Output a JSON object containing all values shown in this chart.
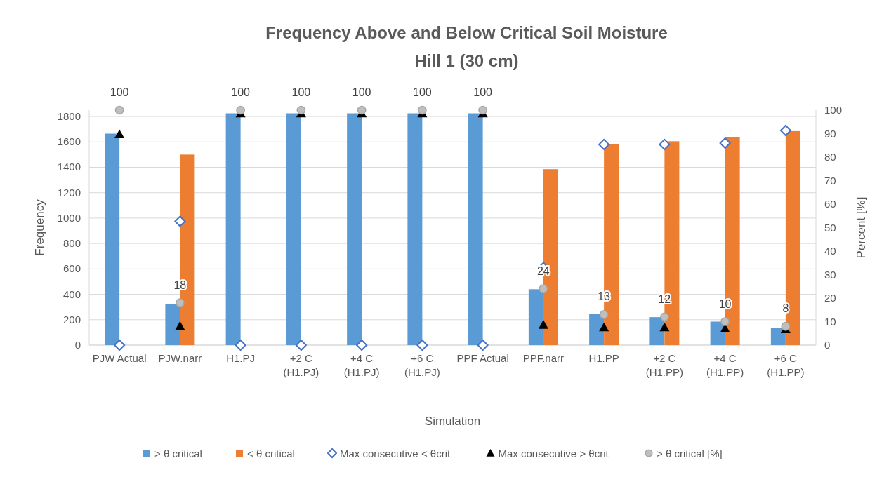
{
  "chart_data": {
    "type": "bar",
    "title": "Frequency Above and Below Critical Soil Moisture",
    "subtitle": "Hill 1 (30 cm)",
    "xlabel": "Simulation",
    "ylabel": "Frequency",
    "y2label": "Percent [%]",
    "categories": [
      "PJW Actual",
      "PJW.narr",
      "H1.PJ",
      "+2 C (H1.PJ)",
      "+4 C (H1.PJ)",
      "+6 C (H1.PJ)",
      "PPF Actual",
      "PPF.narr",
      "H1.PP",
      "+2 C (H1.PP)",
      "+4 C (H1.PP)",
      "+6 C (H1.PP)"
    ],
    "series": [
      {
        "name": "> θ critical",
        "color": "#5b9bd5",
        "values": [
          1665,
          325,
          1825,
          1825,
          1825,
          1825,
          1825,
          440,
          245,
          220,
          185,
          135
        ]
      },
      {
        "name": "< θ critical",
        "color": "#ed7d31",
        "values": [
          null,
          1500,
          null,
          null,
          null,
          null,
          null,
          1385,
          1580,
          1605,
          1640,
          1685
        ]
      },
      {
        "name": "Max consecutive < θcrit",
        "type": "scatter",
        "marker": "diamond",
        "color": "#4472c4",
        "values": [
          0,
          975,
          0,
          0,
          0,
          0,
          0,
          610,
          1580,
          1580,
          1590,
          1690
        ]
      },
      {
        "name": "Max consecutive > θcrit",
        "type": "scatter",
        "marker": "triangle",
        "color": "#000000",
        "values": [
          1660,
          150,
          1825,
          1825,
          1825,
          1825,
          1825,
          160,
          140,
          140,
          130,
          125
        ]
      },
      {
        "name": "> θ critical [%]",
        "type": "scatter",
        "marker": "circle",
        "color": "#bfbfbf",
        "axis": "y2",
        "values": [
          100,
          18,
          100,
          100,
          100,
          100,
          100,
          24,
          13,
          12,
          10,
          8
        ],
        "value_labels": [
          "100",
          "18",
          "100",
          "100",
          "100",
          "100",
          "100",
          "24",
          "13",
          "12",
          "10",
          "8"
        ]
      }
    ],
    "ylim": [
      0,
      1850
    ],
    "yticks": [
      0,
      200,
      400,
      600,
      800,
      1000,
      1200,
      1400,
      1600,
      1800
    ],
    "y2lim": [
      0,
      100
    ],
    "y2ticks": [
      0,
      10,
      20,
      30,
      40,
      50,
      60,
      70,
      80,
      90,
      100
    ],
    "grid": "y",
    "legend": "bottom"
  }
}
